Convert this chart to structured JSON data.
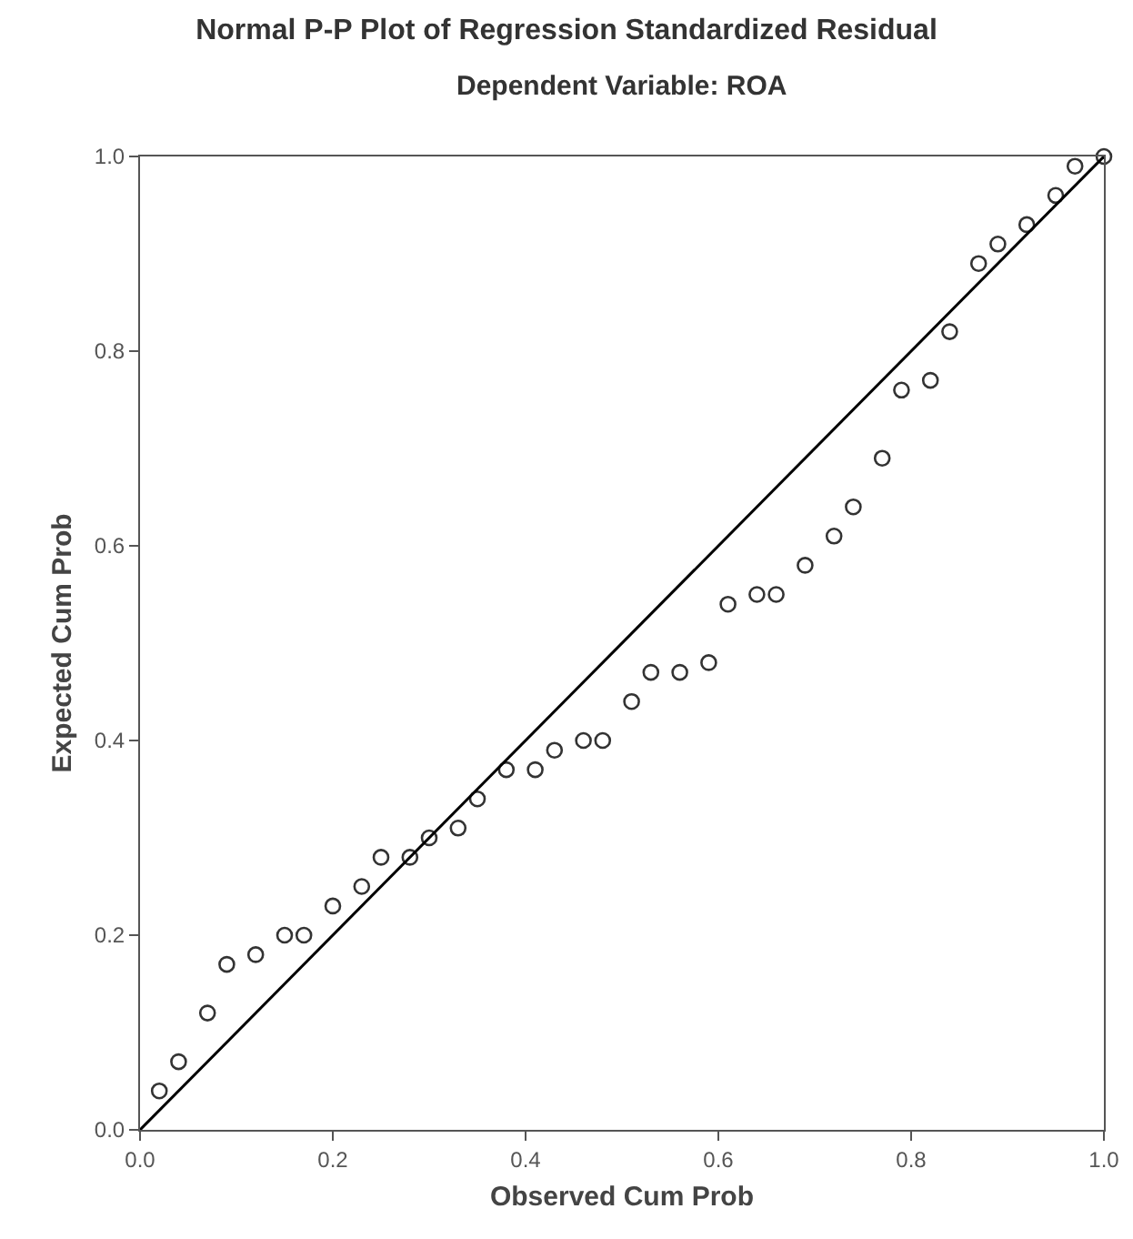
{
  "chart_data": {
    "type": "scatter",
    "title": "Normal P-P Plot of Regression Standardized Residual",
    "subtitle": "Dependent Variable: ROA",
    "xlabel": "Observed Cum Prob",
    "ylabel": "Expected Cum Prob",
    "xlim": [
      0,
      1
    ],
    "ylim": [
      0,
      1
    ],
    "xticks": [
      {
        "value": 0,
        "label": "0.0"
      },
      {
        "value": 0.2,
        "label": "0.2"
      },
      {
        "value": 0.4,
        "label": "0.4"
      },
      {
        "value": 0.6,
        "label": "0.6"
      },
      {
        "value": 0.8,
        "label": "0.8"
      },
      {
        "value": 1,
        "label": "1.0"
      }
    ],
    "yticks": [
      {
        "value": 0,
        "label": "0.0"
      },
      {
        "value": 0.2,
        "label": "0.2"
      },
      {
        "value": 0.4,
        "label": "0.4"
      },
      {
        "value": 0.6,
        "label": "0.6"
      },
      {
        "value": 0.8,
        "label": "0.8"
      },
      {
        "value": 1,
        "label": "1.0"
      }
    ],
    "grid": false,
    "series": [
      {
        "marker": "circle",
        "color": "#333333",
        "x": [
          0.02,
          0.04,
          0.07,
          0.09,
          0.12,
          0.15,
          0.17,
          0.2,
          0.23,
          0.25,
          0.28,
          0.3,
          0.33,
          0.35,
          0.38,
          0.41,
          0.43,
          0.46,
          0.48,
          0.51,
          0.53,
          0.56,
          0.59,
          0.61,
          0.64,
          0.66,
          0.69,
          0.72,
          0.74,
          0.77,
          0.79,
          0.82,
          0.84,
          0.87,
          0.89,
          0.92,
          0.95,
          0.97,
          1.0
        ],
        "values": [
          0.04,
          0.07,
          0.12,
          0.17,
          0.18,
          0.2,
          0.2,
          0.23,
          0.25,
          0.28,
          0.28,
          0.3,
          0.31,
          0.34,
          0.37,
          0.37,
          0.39,
          0.4,
          0.4,
          0.44,
          0.47,
          0.47,
          0.48,
          0.54,
          0.55,
          0.55,
          0.58,
          0.61,
          0.64,
          0.69,
          0.76,
          0.77,
          0.82,
          0.89,
          0.91,
          0.93,
          0.96,
          0.99,
          1.0
        ]
      },
      {
        "type": "line",
        "marker": "none",
        "color": "#000000",
        "x": [
          0,
          1
        ],
        "values": [
          0,
          1
        ]
      }
    ]
  }
}
